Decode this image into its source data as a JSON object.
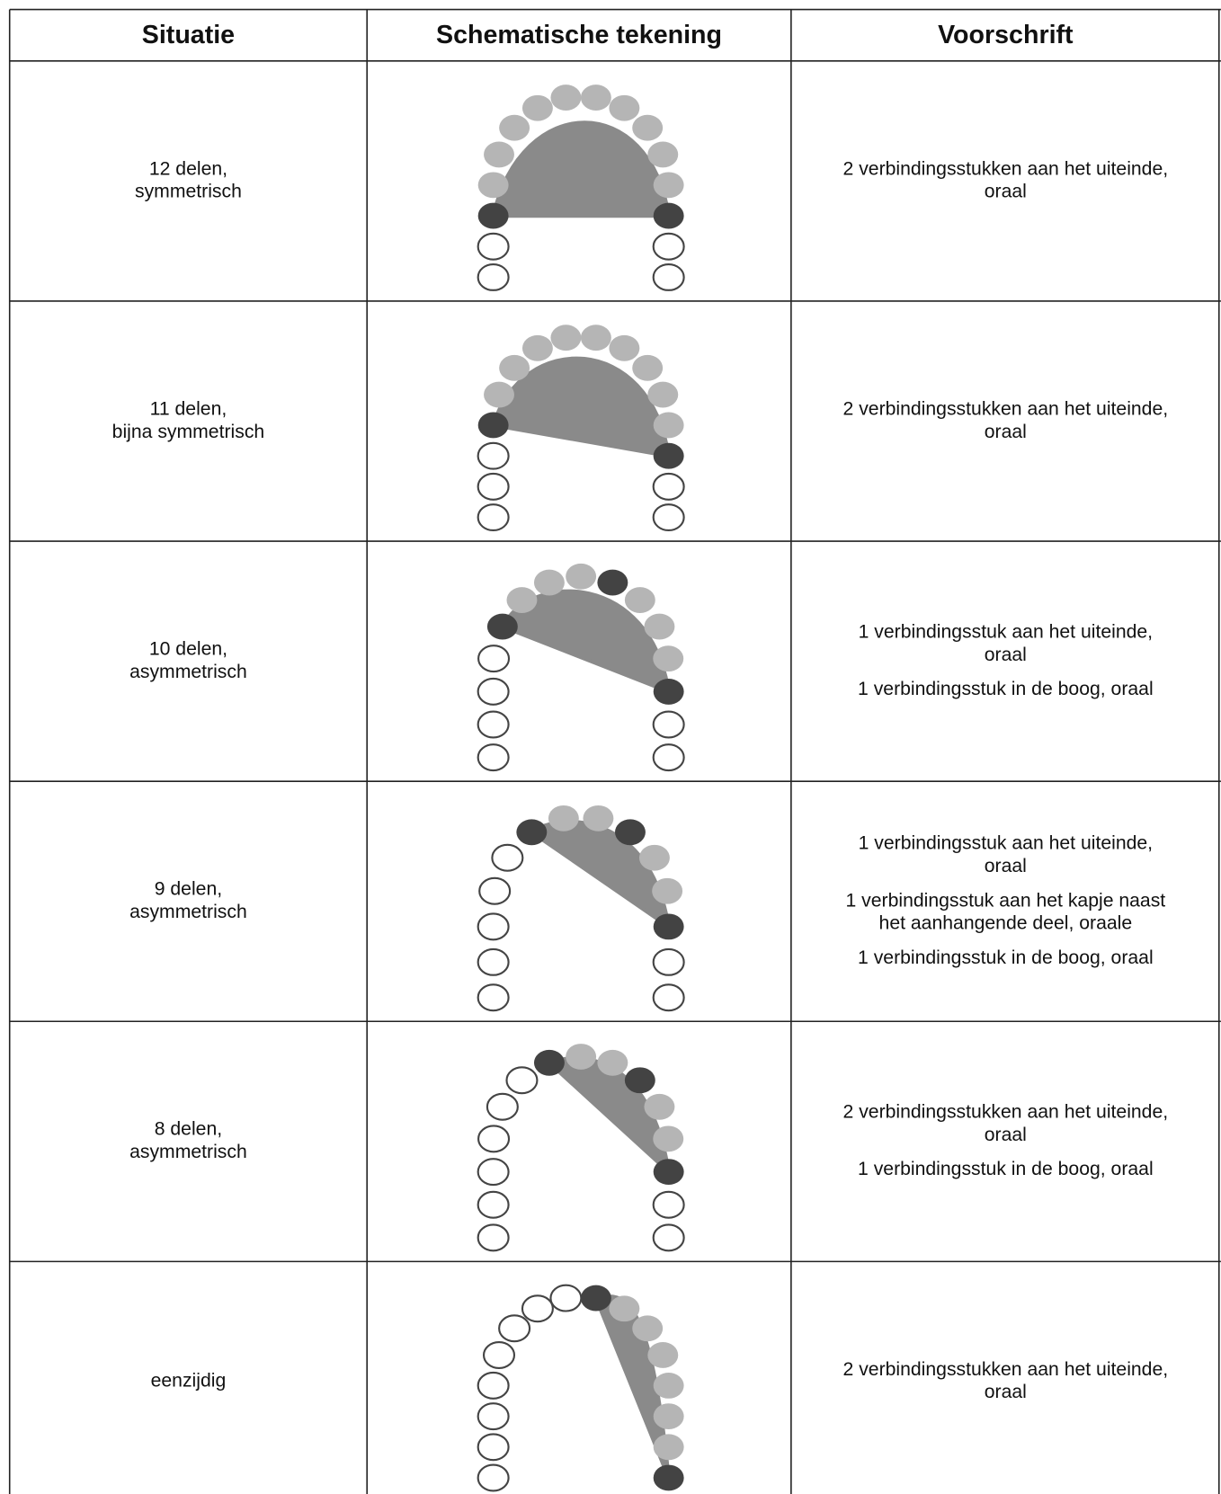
{
  "header": [
    "Situatie",
    "Schematische tekening",
    "Voorschrift"
  ],
  "rows": [
    {
      "situatie": [
        "12 delen,",
        "symmetrisch"
      ],
      "voorschrift": [
        [
          "2 verbindingsstukken aan het uiteinde,",
          "oraal"
        ]
      ]
    },
    {
      "situatie": [
        "11 delen,",
        "bijna symmetrisch"
      ],
      "voorschrift": [
        [
          "2 verbindingsstukken aan het uiteinde,",
          "oraal"
        ]
      ]
    },
    {
      "situatie": [
        "10 delen,",
        "asymmetrisch"
      ],
      "voorschrift": [
        [
          "1 verbindingsstuk aan het uiteinde,",
          "oraal"
        ],
        [
          "1 verbindingsstuk in de boog, oraal"
        ]
      ]
    },
    {
      "situatie": [
        "9 delen,",
        "asymmetrisch"
      ],
      "voorschrift": [
        [
          "1 verbindingsstuk aan het uiteinde,",
          "oraal"
        ],
        [
          "1 verbindingsstuk aan het kapje naast",
          "het aanhangende deel, oraale"
        ],
        [
          "1 verbindingsstuk in de boog, oraal"
        ]
      ]
    },
    {
      "situatie": [
        "8 delen,",
        "asymmetrisch"
      ],
      "voorschrift": [
        [
          "2 verbindingsstukken aan het uiteinde,",
          "oraal"
        ],
        [
          "1 verbindingsstuk in de boog, oraal"
        ]
      ]
    },
    {
      "situatie": [
        "eenzijdig"
      ],
      "voorschrift": [
        [
          "2 verbindingsstukken aan het uiteinde,",
          "oraal"
        ]
      ]
    }
  ]
}
